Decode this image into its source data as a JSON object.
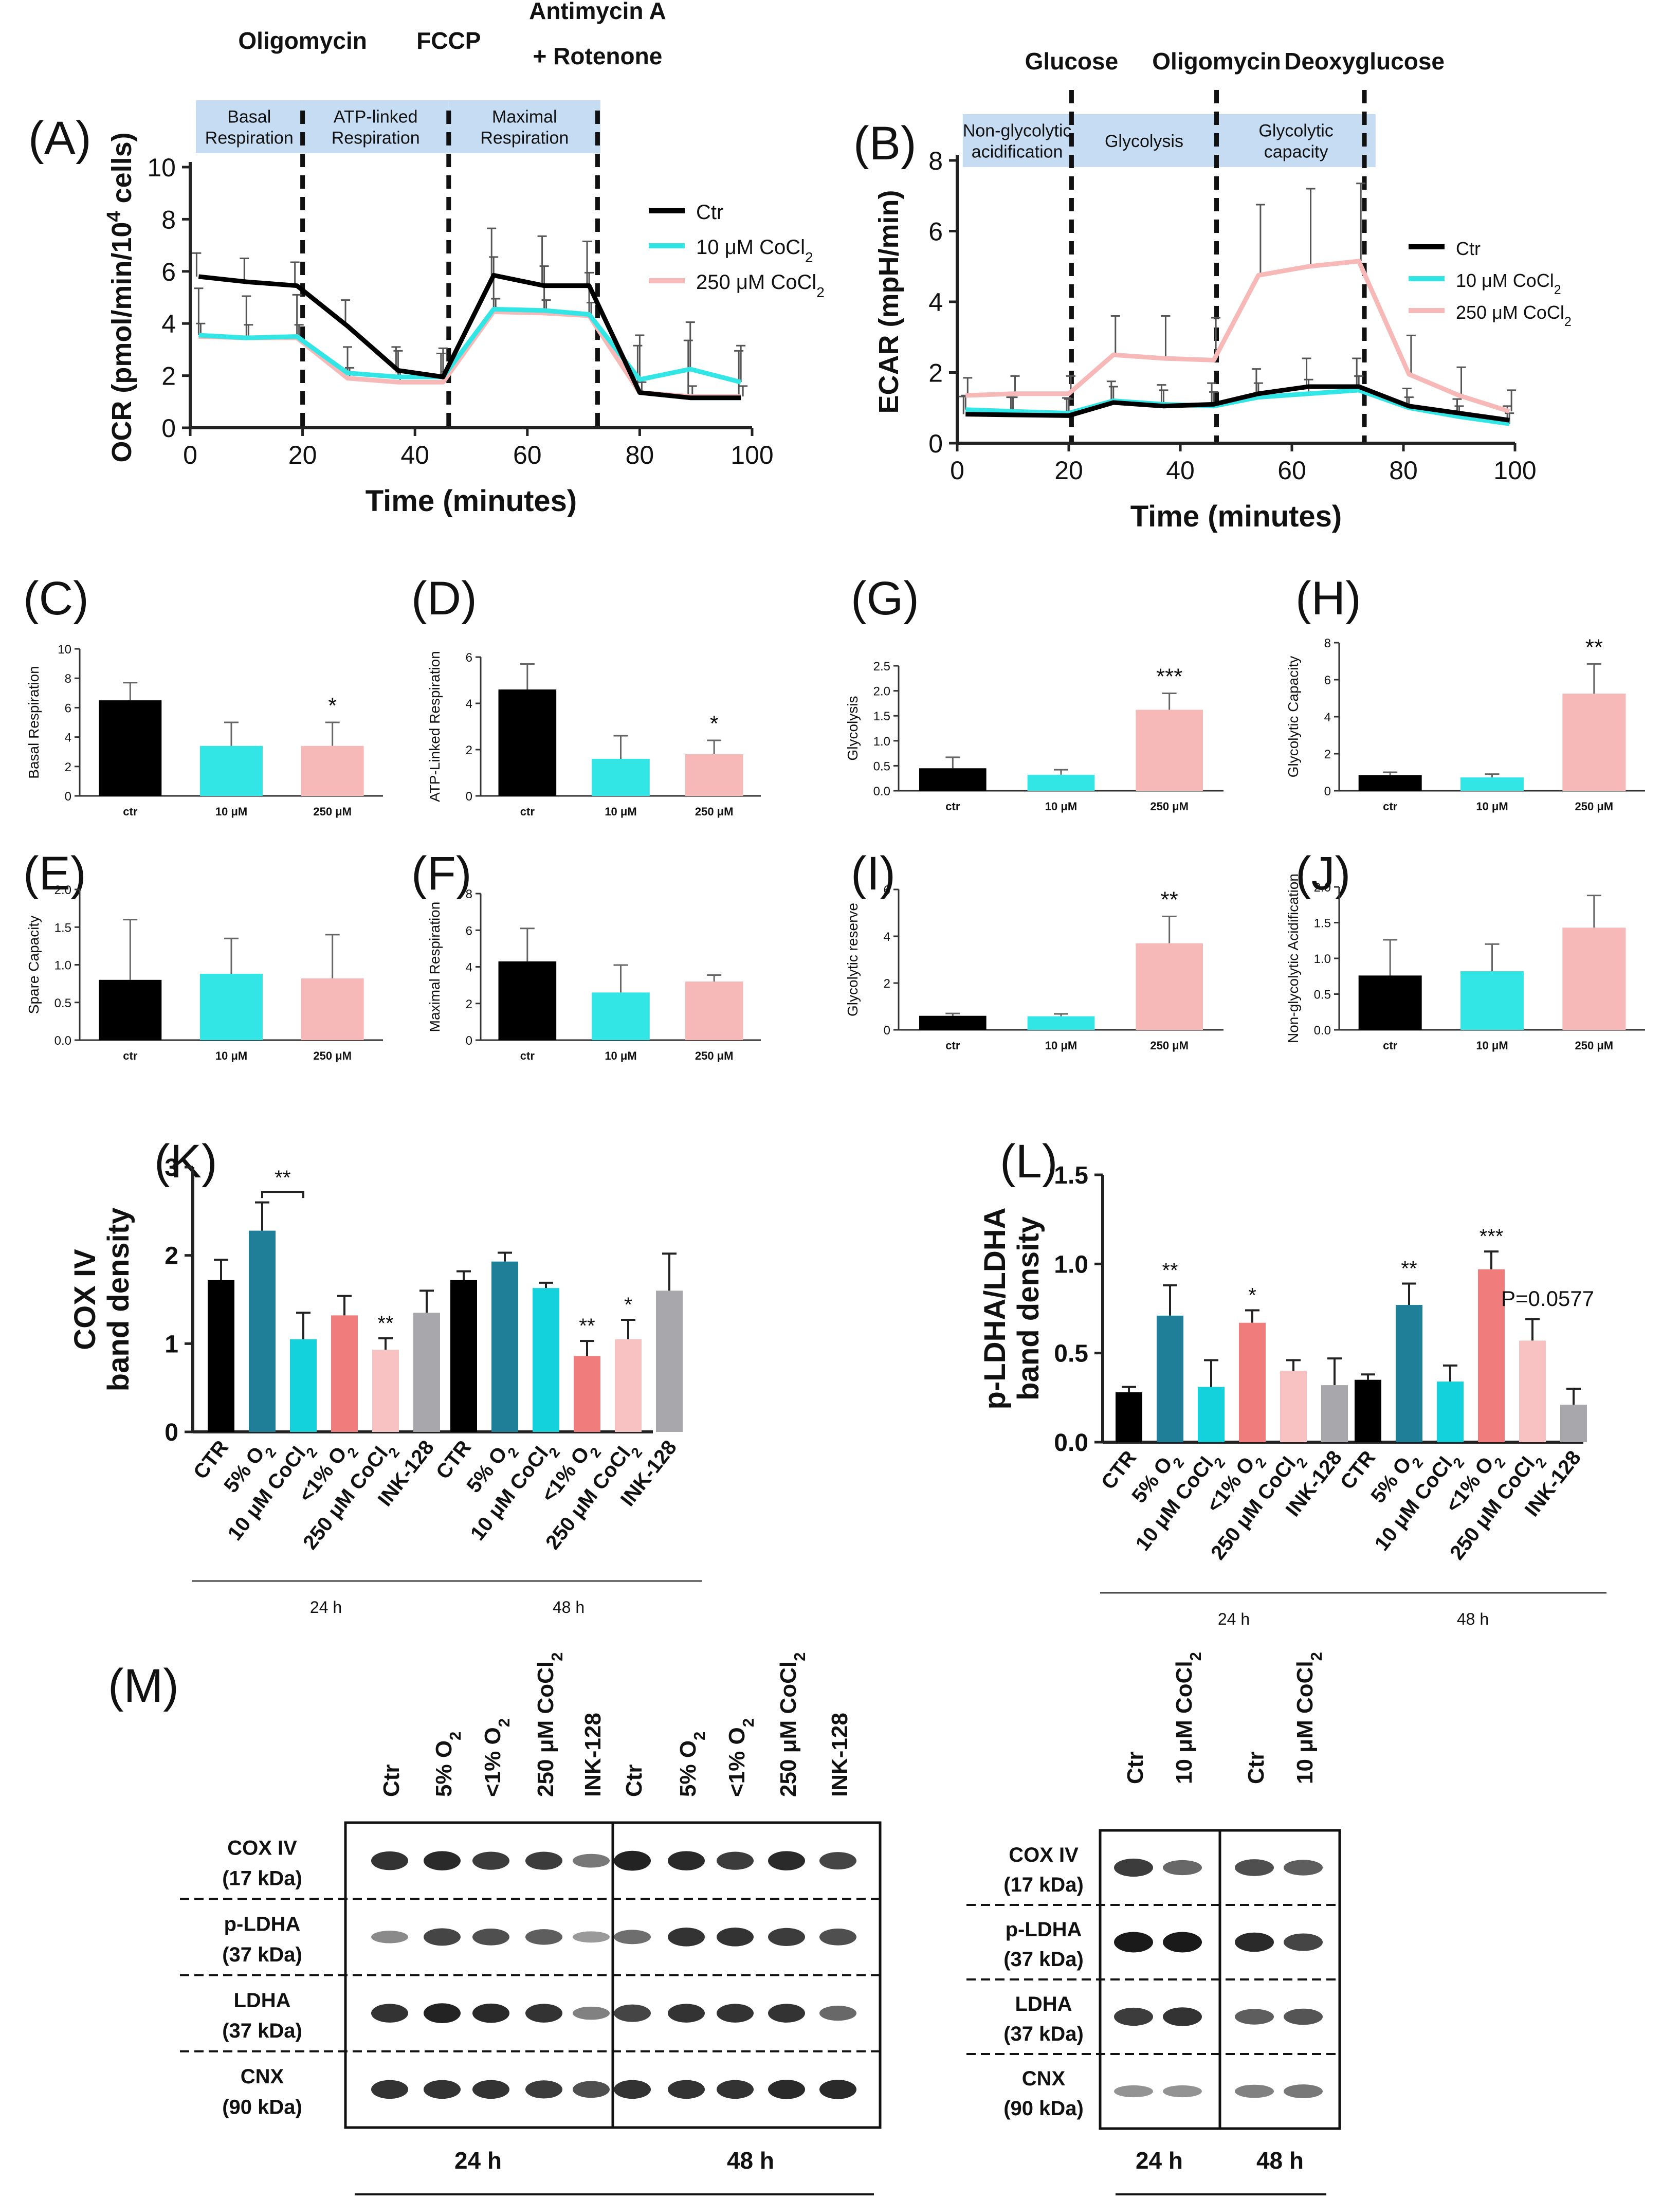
{
  "figure_labels": {
    "A": "(A)",
    "B": "(B)",
    "C": "(C)",
    "D": "(D)",
    "E": "(E)",
    "F": "(F)",
    "G": "(G)",
    "H": "(H)",
    "I": "(I)",
    "J": "(J)",
    "K": "(K)",
    "L": "(L)",
    "M": "(M)"
  },
  "colors": {
    "ctr": "#000000",
    "co10": "#33e6e6",
    "co250": "#f7b8b8",
    "phase": "#c6dcf3",
    "k_teal": "#1f7f98",
    "k_cyan": "#14d2dc",
    "k_coral": "#f07c7c",
    "k_pink": "#f9c2c2",
    "k_gray": "#a8a8ac"
  },
  "chart_data": [
    {
      "id": "A",
      "type": "line",
      "xlabel": "Time (minutes)",
      "ylabel_main": "OCR (pmol/min/10",
      "ylabel_sup": "4",
      "ylabel_end": " cells)",
      "xlim": [
        0,
        100
      ],
      "ylim": [
        0,
        10
      ],
      "xticks": [
        0,
        20,
        40,
        60,
        80,
        100
      ],
      "yticks": [
        0,
        2,
        4,
        6,
        8,
        10
      ],
      "injections": [
        {
          "x": 20,
          "label": "Oligomycin"
        },
        {
          "x": 46,
          "label": "FCCP"
        },
        {
          "x": 72.5,
          "label_line1": "Antimycin A",
          "label_line2": "+ Rotenone"
        }
      ],
      "phases": [
        {
          "from": 1,
          "to": 20,
          "line1": "Basal",
          "line2": "Respiration"
        },
        {
          "from": 20,
          "to": 46,
          "line1": "ATP-linked",
          "line2": "Respiration"
        },
        {
          "from": 46,
          "to": 73,
          "line1": "Maximal",
          "line2": "Respiration"
        }
      ],
      "legend": [
        {
          "key": "ctr",
          "text": "Ctr"
        },
        {
          "key": "co10",
          "text": "10 μM CoCl",
          "sub": "2"
        },
        {
          "key": "co250",
          "text": "250 μM CoCl",
          "sub": "2"
        }
      ],
      "x": [
        1.5,
        10,
        19,
        28,
        37,
        45,
        54,
        63,
        71,
        80,
        89,
        98
      ],
      "series": [
        {
          "key": "ctr",
          "values": [
            5.8,
            5.6,
            5.45,
            3.9,
            2.2,
            1.95,
            5.85,
            5.45,
            5.45,
            1.35,
            1.15,
            1.15
          ],
          "err": [
            0.9,
            0.9,
            0.9,
            1.0,
            0.9,
            0.9,
            1.8,
            1.9,
            1.7,
            1.8,
            2.2,
            1.8
          ]
        },
        {
          "key": "co10",
          "values": [
            3.55,
            3.45,
            3.5,
            2.1,
            1.95,
            1.95,
            4.55,
            4.5,
            4.35,
            1.85,
            2.25,
            1.75
          ],
          "err": [
            1.8,
            1.6,
            1.6,
            1.0,
            1.0,
            1.1,
            2.0,
            1.7,
            1.6,
            1.7,
            1.8,
            1.4
          ]
        },
        {
          "key": "co250",
          "values": [
            3.5,
            3.45,
            3.45,
            1.9,
            1.75,
            1.75,
            4.45,
            4.4,
            4.3,
            1.35,
            1.2,
            1.2
          ],
          "err": [
            0.5,
            0.5,
            0.5,
            0.4,
            0.4,
            0.4,
            0.5,
            0.5,
            0.5,
            0.4,
            0.4,
            0.4
          ]
        }
      ]
    },
    {
      "id": "B",
      "type": "line",
      "xlabel": "Time (minutes)",
      "ylabel": "ECAR (mpH/min)",
      "xlim": [
        0,
        100
      ],
      "ylim": [
        0,
        8
      ],
      "xticks": [
        0,
        20,
        40,
        60,
        80,
        100
      ],
      "yticks": [
        0,
        2,
        4,
        6,
        8
      ],
      "injections": [
        {
          "x": 20.5,
          "label": "Glucose"
        },
        {
          "x": 46.5,
          "label": "Oligomycin"
        },
        {
          "x": 73,
          "label": "Deoxyglucose"
        }
      ],
      "phases": [
        {
          "from": 1,
          "to": 20.5,
          "line1": "Non-glycolytic",
          "line2": "acidification"
        },
        {
          "from": 20.5,
          "to": 46.5,
          "line1": "Glycolysis",
          "line2": ""
        },
        {
          "from": 46.5,
          "to": 75,
          "line1": "Glycolytic",
          "line2": "capacity"
        }
      ],
      "legend": [
        {
          "key": "ctr",
          "text": "Ctr"
        },
        {
          "key": "co10",
          "text": "10 μM CoCl",
          "sub": "2"
        },
        {
          "key": "co250",
          "text": "250 μM CoCl",
          "sub": "2"
        }
      ],
      "x": [
        1.5,
        10,
        20,
        28,
        37,
        46,
        54,
        63,
        72,
        81,
        90,
        99
      ],
      "series": [
        {
          "key": "ctr",
          "values": [
            0.82,
            0.8,
            0.78,
            1.15,
            1.05,
            1.1,
            1.4,
            1.6,
            1.6,
            1.05,
            0.85,
            0.65
          ],
          "err": [
            0.5,
            0.5,
            0.5,
            0.6,
            0.6,
            0.6,
            0.7,
            0.8,
            0.8,
            0.5,
            0.4,
            0.4
          ]
        },
        {
          "key": "co10",
          "values": [
            0.95,
            0.9,
            0.85,
            1.2,
            1.1,
            1.05,
            1.3,
            1.4,
            1.5,
            1.0,
            0.75,
            0.55
          ],
          "err": [
            0.4,
            0.4,
            0.4,
            0.4,
            0.4,
            0.4,
            0.4,
            0.4,
            0.4,
            0.3,
            0.3,
            0.3
          ]
        },
        {
          "key": "co250",
          "values": [
            1.35,
            1.4,
            1.4,
            2.5,
            2.4,
            2.35,
            4.75,
            5.0,
            5.15,
            1.95,
            1.35,
            0.9
          ],
          "err": [
            0.5,
            0.5,
            0.5,
            1.1,
            1.2,
            1.2,
            2.0,
            2.2,
            2.2,
            1.1,
            0.8,
            0.6
          ]
        }
      ]
    },
    {
      "id": "C",
      "type": "bar",
      "ylabel": "Basal Respiration",
      "categories": [
        "ctr",
        "10 μM",
        "250 μM"
      ],
      "values": [
        6.5,
        3.4,
        3.4
      ],
      "err": [
        1.2,
        1.6,
        1.6
      ],
      "ylim": [
        0,
        10
      ],
      "yticks": [
        0,
        2,
        4,
        6,
        8,
        10
      ],
      "signif": [
        "",
        "",
        "*"
      ]
    },
    {
      "id": "D",
      "type": "bar",
      "ylabel": "ATP-Linked Respiration",
      "categories": [
        "ctr",
        "10 μM",
        "250 μM"
      ],
      "values": [
        4.6,
        1.6,
        1.8
      ],
      "err": [
        1.1,
        1.0,
        0.6
      ],
      "ylim": [
        0,
        6
      ],
      "yticks": [
        0,
        2,
        4,
        6
      ],
      "signif": [
        "",
        "",
        "*"
      ]
    },
    {
      "id": "E",
      "type": "bar",
      "ylabel": "Spare Capacity",
      "categories": [
        "ctr",
        "10 μM",
        "250 μM"
      ],
      "values": [
        0.8,
        0.88,
        0.82
      ],
      "err": [
        0.8,
        0.47,
        0.58
      ],
      "ylim": [
        0,
        2.0
      ],
      "yticks": [
        0.0,
        0.5,
        1.0,
        1.5,
        2.0
      ],
      "ytick_labels": [
        "0.0",
        "0.5",
        "1.0",
        "1.5",
        "2.0"
      ],
      "signif": [
        "",
        "",
        ""
      ]
    },
    {
      "id": "F",
      "type": "bar",
      "ylabel": "Maximal Respiration",
      "categories": [
        "ctr",
        "10 μM",
        "250 μM"
      ],
      "values": [
        4.3,
        2.6,
        3.2
      ],
      "err": [
        1.8,
        1.5,
        0.35
      ],
      "ylim": [
        0,
        8
      ],
      "yticks": [
        0,
        2,
        4,
        6,
        8
      ],
      "signif": [
        "",
        "",
        ""
      ]
    },
    {
      "id": "G",
      "type": "bar",
      "ylabel": "Glycolysis",
      "categories": [
        "ctr",
        "10 μM",
        "250 μM"
      ],
      "values": [
        0.45,
        0.32,
        1.62
      ],
      "err": [
        0.22,
        0.1,
        0.33
      ],
      "ylim": [
        0,
        2.5
      ],
      "yticks": [
        0.0,
        0.5,
        1.0,
        1.5,
        2.0,
        2.5
      ],
      "ytick_labels": [
        "0.0",
        "0.5",
        "1.0",
        "1.5",
        "2.0",
        "2.5"
      ],
      "signif": [
        "",
        "",
        "***"
      ]
    },
    {
      "id": "H",
      "type": "bar",
      "ylabel": "Glycolytic Capacity",
      "categories": [
        "ctr",
        "10 μM",
        "250 μM"
      ],
      "values": [
        0.85,
        0.72,
        5.25
      ],
      "err": [
        0.15,
        0.18,
        1.6
      ],
      "ylim": [
        0,
        8
      ],
      "yticks": [
        0,
        2,
        4,
        6,
        8
      ],
      "signif": [
        "",
        "",
        "**"
      ]
    },
    {
      "id": "I",
      "type": "bar",
      "ylabel": "Glycolytic reserve",
      "categories": [
        "ctr",
        "10 μM",
        "250 μM"
      ],
      "values": [
        0.6,
        0.58,
        3.7
      ],
      "err": [
        0.1,
        0.1,
        1.15
      ],
      "ylim": [
        0,
        6
      ],
      "yticks": [
        0,
        2,
        4,
        6
      ],
      "signif": [
        "",
        "",
        "**"
      ]
    },
    {
      "id": "J",
      "type": "bar",
      "ylabel": "Non-glycolytic Acidification",
      "categories": [
        "ctr",
        "10 μM",
        "250 μM"
      ],
      "values": [
        0.76,
        0.82,
        1.43
      ],
      "err": [
        0.5,
        0.38,
        0.45
      ],
      "ylim": [
        0,
        2.0
      ],
      "yticks": [
        0.0,
        0.5,
        1.0,
        1.5,
        2.0
      ],
      "ytick_labels": [
        "0.0",
        "0.5",
        "1.0",
        "1.5",
        "2.0"
      ],
      "signif": [
        "",
        "",
        ""
      ]
    },
    {
      "id": "K",
      "type": "bar",
      "ylabel_line1": "COX IV",
      "ylabel_line2": "band density",
      "ylim": [
        0,
        3
      ],
      "yticks": [
        0,
        1,
        2,
        3
      ],
      "categories": [
        {
          "text": "CTR"
        },
        {
          "text": "5% O",
          "sub": "2"
        },
        {
          "text": "10 μM CoCl",
          "sub": "2"
        },
        {
          "text": "<1% O",
          "sub": "2"
        },
        {
          "text": "250 μM CoCl",
          "sub": "2"
        },
        {
          "text": "INK-128"
        }
      ],
      "group_labels": [
        "24 h",
        "48 h"
      ],
      "bar_colors": [
        "ctr",
        "k_teal",
        "k_cyan",
        "k_coral",
        "k_pink",
        "k_gray"
      ],
      "series": [
        {
          "name": "24 h",
          "values": [
            1.72,
            2.28,
            1.05,
            1.32,
            0.93,
            1.35
          ],
          "err": [
            0.23,
            0.32,
            0.3,
            0.22,
            0.13,
            0.25
          ],
          "signif": [
            "",
            "",
            "",
            "",
            "**",
            ""
          ]
        },
        {
          "name": "48 h",
          "values": [
            1.72,
            1.93,
            1.63,
            0.86,
            1.05,
            1.6
          ],
          "err": [
            0.1,
            0.1,
            0.06,
            0.17,
            0.22,
            0.42
          ],
          "signif": [
            "",
            "",
            "",
            "**",
            "*",
            ""
          ]
        }
      ],
      "bracket": {
        "from": 1,
        "to": 2,
        "label": "**"
      }
    },
    {
      "id": "L",
      "type": "bar",
      "ylabel_line1": "p-LDHA/LDHA",
      "ylabel_line2": "band density",
      "ylim": [
        0,
        1.5
      ],
      "yticks": [
        0,
        0.5,
        1.0,
        1.5
      ],
      "ytick_labels": [
        "0.0",
        "0.5",
        "1.0",
        "1.5"
      ],
      "categories": [
        {
          "text": "CTR"
        },
        {
          "text": "5% O",
          "sub": "2"
        },
        {
          "text": "10 μM CoCl",
          "sub": "2"
        },
        {
          "text": "<1% O",
          "sub": "2"
        },
        {
          "text": "250 μM CoCl",
          "sub": "2"
        },
        {
          "text": "INK-128"
        }
      ],
      "group_labels": [
        "24 h",
        "48 h"
      ],
      "bar_colors": [
        "ctr",
        "k_teal",
        "k_cyan",
        "k_coral",
        "k_pink",
        "k_gray"
      ],
      "series": [
        {
          "name": "24 h",
          "values": [
            0.28,
            0.71,
            0.31,
            0.67,
            0.4,
            0.32
          ],
          "err": [
            0.03,
            0.17,
            0.15,
            0.07,
            0.06,
            0.15
          ],
          "signif": [
            "",
            "**",
            "",
            "*",
            "",
            ""
          ]
        },
        {
          "name": "48 h",
          "values": [
            0.35,
            0.77,
            0.34,
            0.97,
            0.57,
            0.21
          ],
          "err": [
            0.03,
            0.12,
            0.09,
            0.1,
            0.12,
            0.09
          ],
          "signif": [
            "",
            "**",
            "",
            "***",
            "",
            ""
          ]
        }
      ],
      "annotation": "P=0.0577"
    }
  ],
  "blot": {
    "lanes_left": [
      {
        "text": "Ctr"
      },
      {
        "text": "5% O",
        "sub": "2"
      },
      {
        "text": "<1% O",
        "sub": "2"
      },
      {
        "text": "250 μM CoCl",
        "sub": "2"
      },
      {
        "text": "INK-128"
      },
      {
        "text": "Ctr"
      },
      {
        "text": "5% O",
        "sub": "2"
      },
      {
        "text": "<1% O",
        "sub": "2"
      },
      {
        "text": "250 μM CoCl",
        "sub": "2"
      },
      {
        "text": "INK-128"
      }
    ],
    "lanes_right": [
      {
        "text": "Ctr"
      },
      {
        "text": "10 μM CoCl",
        "sub": "2"
      },
      {
        "text": "Ctr"
      },
      {
        "text": "10 μM CoCl",
        "sub": "2"
      }
    ],
    "rows": [
      {
        "name": "COX IV",
        "kda": "(17 kDa)"
      },
      {
        "name": "p-LDHA",
        "kda": "(37 kDa)"
      },
      {
        "name": "LDHA",
        "kda": "(37 kDa)"
      },
      {
        "name": "CNX",
        "kda": "(90 kDa)"
      }
    ],
    "time_labels": [
      "24 h",
      "48 h"
    ],
    "band_intensity_left": [
      [
        0.85,
        0.9,
        0.8,
        0.8,
        0.45,
        0.95,
        0.9,
        0.8,
        0.9,
        0.75
      ],
      [
        0.35,
        0.75,
        0.7,
        0.6,
        0.25,
        0.5,
        0.85,
        0.85,
        0.8,
        0.7
      ],
      [
        0.85,
        0.95,
        0.9,
        0.85,
        0.4,
        0.75,
        0.85,
        0.85,
        0.85,
        0.55
      ],
      [
        0.85,
        0.85,
        0.85,
        0.8,
        0.7,
        0.85,
        0.85,
        0.85,
        0.9,
        0.9
      ]
    ],
    "band_intensity_right": [
      [
        0.8,
        0.55,
        0.7,
        0.6
      ],
      [
        1.0,
        1.0,
        0.9,
        0.75
      ],
      [
        0.8,
        0.85,
        0.6,
        0.65
      ],
      [
        0.3,
        0.3,
        0.4,
        0.45
      ]
    ]
  }
}
